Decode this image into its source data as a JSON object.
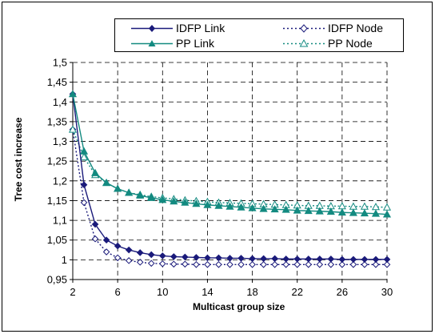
{
  "chart_data": {
    "type": "line",
    "title": "",
    "xlabel": "Multicast group size",
    "ylabel": "Tree cost increase",
    "xlim": [
      2,
      30
    ],
    "ylim": [
      0.95,
      1.5
    ],
    "xticks": [
      2,
      6,
      10,
      14,
      18,
      22,
      26,
      30
    ],
    "yticks": [
      0.95,
      1,
      1.05,
      1.1,
      1.15,
      1.2,
      1.25,
      1.3,
      1.35,
      1.4,
      1.45,
      1.5
    ],
    "ytick_labels": [
      "0,95",
      "1",
      "1,05",
      "1,1",
      "1,15",
      "1,2",
      "1,25",
      "1,3",
      "1,35",
      "1,4",
      "1,45",
      "1,5"
    ],
    "grid": true,
    "legend_position": "top",
    "x": [
      2,
      3,
      4,
      5,
      6,
      7,
      8,
      9,
      10,
      11,
      12,
      13,
      14,
      15,
      16,
      17,
      18,
      19,
      20,
      21,
      22,
      23,
      24,
      25,
      26,
      27,
      28,
      29,
      30
    ],
    "series": [
      {
        "name": "IDFP Link",
        "color": "#1a1a7a",
        "marker": "diamond-filled",
        "dash": false,
        "values": [
          1.42,
          1.19,
          1.09,
          1.05,
          1.035,
          1.025,
          1.018,
          1.013,
          1.01,
          1.008,
          1.007,
          1.006,
          1.005,
          1.005,
          1.004,
          1.004,
          1.003,
          1.003,
          1.003,
          1.002,
          1.002,
          1.002,
          1.002,
          1.002,
          1.001,
          1.001,
          1.001,
          1.001,
          1.001
        ]
      },
      {
        "name": "IDFP Node",
        "color": "#1a1a7a",
        "marker": "diamond-open",
        "dash": true,
        "values": [
          1.33,
          1.145,
          1.053,
          1.02,
          1.005,
          0.998,
          0.994,
          0.991,
          0.99,
          0.989,
          0.989,
          0.988,
          0.988,
          0.988,
          0.988,
          0.988,
          0.988,
          0.988,
          0.988,
          0.988,
          0.988,
          0.988,
          0.988,
          0.988,
          0.988,
          0.988,
          0.988,
          0.988,
          0.988
        ]
      },
      {
        "name": "PP Link",
        "color": "#138a80",
        "marker": "triangle-filled",
        "dash": false,
        "values": [
          1.42,
          1.275,
          1.22,
          1.195,
          1.18,
          1.17,
          1.163,
          1.157,
          1.152,
          1.148,
          1.145,
          1.142,
          1.139,
          1.137,
          1.135,
          1.133,
          1.131,
          1.129,
          1.128,
          1.127,
          1.125,
          1.124,
          1.123,
          1.122,
          1.12,
          1.119,
          1.118,
          1.117,
          1.115
        ]
      },
      {
        "name": "PP Node",
        "color": "#138a80",
        "marker": "triangle-open",
        "dash": true,
        "values": [
          1.33,
          1.26,
          1.215,
          1.195,
          1.18,
          1.17,
          1.165,
          1.16,
          1.157,
          1.154,
          1.151,
          1.149,
          1.147,
          1.145,
          1.144,
          1.143,
          1.142,
          1.141,
          1.14,
          1.139,
          1.138,
          1.137,
          1.137,
          1.136,
          1.136,
          1.135,
          1.135,
          1.134,
          1.133
        ]
      }
    ]
  }
}
